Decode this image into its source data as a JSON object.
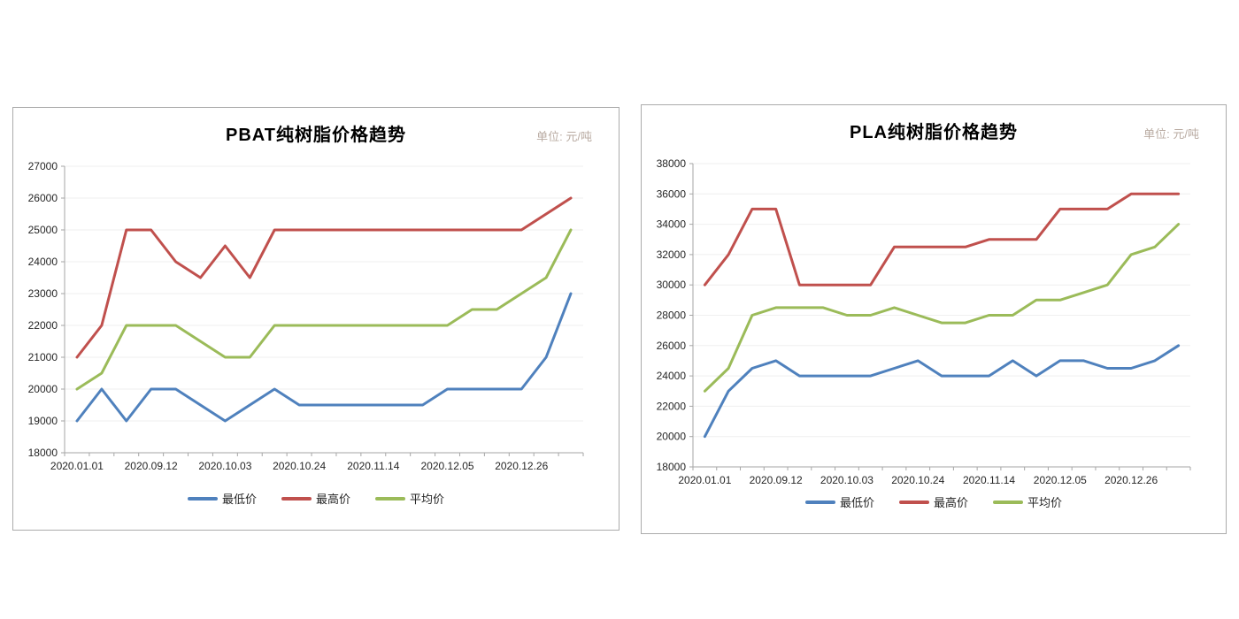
{
  "colors": {
    "line_min": "#4f81bd",
    "line_max": "#c0504d",
    "line_avg": "#9bbb59",
    "grid": "#efefef",
    "axis": "#a6a6a6",
    "tick_text": "#262626",
    "title_text": "#000000",
    "unit_text": "#b9aba2",
    "panel_border": "#ababab"
  },
  "chart_data": [
    {
      "type": "line",
      "title": "PBAT纯树脂价格趋势",
      "unit_label": "单位: 元/吨",
      "x_tick_labels": [
        "2020.01.01",
        "2020.09.12",
        "2020.10.03",
        "2020.10.24",
        "2020.11.14",
        "2020.12.05",
        "2020.12.26"
      ],
      "label_every": 3,
      "n_points": 21,
      "ylim": [
        18000,
        27000
      ],
      "ytick_step": 1000,
      "grid": true,
      "legend_position": "bottom",
      "series": [
        {
          "name": "最低价",
          "color": "#4f81bd",
          "values": [
            19000,
            20000,
            19000,
            20000,
            20000,
            19500,
            19000,
            19500,
            20000,
            19500,
            19500,
            19500,
            19500,
            19500,
            19500,
            20000,
            20000,
            20000,
            20000,
            21000,
            23000
          ]
        },
        {
          "name": "最高价",
          "color": "#c0504d",
          "values": [
            21000,
            22000,
            25000,
            25000,
            24000,
            23500,
            24500,
            23500,
            25000,
            25000,
            25000,
            25000,
            25000,
            25000,
            25000,
            25000,
            25000,
            25000,
            25000,
            25500,
            26000
          ]
        },
        {
          "name": "平均价",
          "color": "#9bbb59",
          "values": [
            20000,
            20500,
            22000,
            22000,
            22000,
            21500,
            21000,
            21000,
            22000,
            22000,
            22000,
            22000,
            22000,
            22000,
            22000,
            22000,
            22500,
            22500,
            23000,
            23500,
            25000
          ]
        }
      ]
    },
    {
      "type": "line",
      "title": "PLA纯树脂价格趋势",
      "unit_label": "单位: 元/吨",
      "x_tick_labels": [
        "2020.01.01",
        "2020.09.12",
        "2020.10.03",
        "2020.10.24",
        "2020.11.14",
        "2020.12.05",
        "2020.12.26"
      ],
      "label_every": 3,
      "n_points": 21,
      "ylim": [
        18000,
        38000
      ],
      "ytick_step": 2000,
      "grid": true,
      "legend_position": "bottom",
      "series": [
        {
          "name": "最低价",
          "color": "#4f81bd",
          "values": [
            20000,
            23000,
            24500,
            25000,
            24000,
            24000,
            24000,
            24000,
            24500,
            25000,
            24000,
            24000,
            24000,
            25000,
            24000,
            25000,
            25000,
            24500,
            24500,
            25000,
            26000
          ]
        },
        {
          "name": "最高价",
          "color": "#c0504d",
          "values": [
            30000,
            32000,
            35000,
            35000,
            30000,
            30000,
            30000,
            30000,
            32500,
            32500,
            32500,
            32500,
            33000,
            33000,
            33000,
            35000,
            35000,
            35000,
            36000,
            36000,
            36000
          ]
        },
        {
          "name": "平均价",
          "color": "#9bbb59",
          "values": [
            23000,
            24500,
            28000,
            28500,
            28500,
            28500,
            28000,
            28000,
            28500,
            28000,
            27500,
            27500,
            28000,
            28000,
            29000,
            29000,
            29500,
            30000,
            32000,
            32500,
            34000
          ]
        }
      ]
    }
  ]
}
